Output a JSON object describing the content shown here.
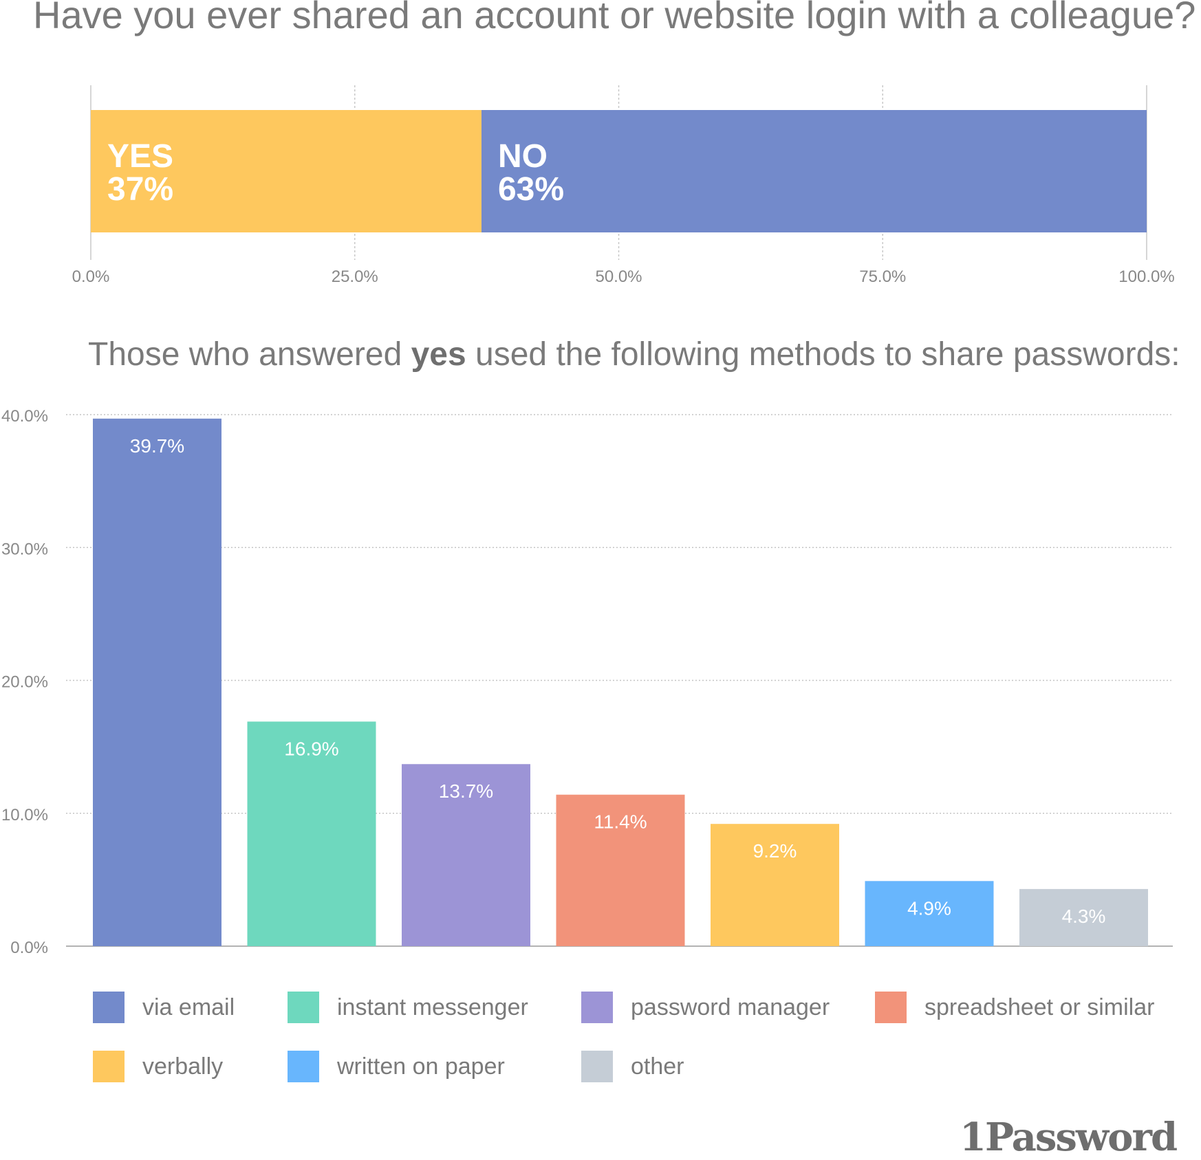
{
  "chart_data": [
    {
      "type": "bar",
      "orientation": "horizontal-stacked",
      "title": "Have you ever shared an account or website login with a colleague?",
      "segments": [
        {
          "name": "YES",
          "value": 37,
          "label": "37%",
          "color": "#FEC85E"
        },
        {
          "name": "NO",
          "value": 63,
          "label": "63%",
          "color": "#738ACB"
        }
      ],
      "xlim": [
        0,
        100
      ],
      "ticks": [
        "0.0%",
        "25.0%",
        "50.0%",
        "75.0%",
        "100.0%"
      ],
      "tick_values": [
        0,
        25,
        50,
        75,
        100
      ],
      "grid": true
    },
    {
      "type": "bar",
      "title_prefix": "Those who answered ",
      "title_bold": "yes",
      "title_suffix": " used the following methods to share passwords:",
      "categories": [
        "via email",
        "instant messenger",
        "password manager",
        "spreadsheet or similar",
        "verbally",
        "written on paper",
        "other"
      ],
      "values": [
        39.7,
        16.9,
        13.7,
        11.4,
        9.2,
        4.9,
        4.3
      ],
      "labels": [
        "39.7%",
        "16.9%",
        "13.7%",
        "11.4%",
        "9.2%",
        "4.9%",
        "4.3%"
      ],
      "colors": [
        "#738ACB",
        "#6ED8BE",
        "#9C94D6",
        "#F2937A",
        "#FEC85E",
        "#68B6FD",
        "#C5CDD6"
      ],
      "ylim": [
        0,
        40
      ],
      "yticks": [
        "0.0%",
        "10.0%",
        "20.0%",
        "30.0%",
        "40.0%"
      ],
      "ytick_values": [
        0,
        10,
        20,
        30,
        40
      ],
      "grid": true,
      "legend_placement": "bottom"
    }
  ],
  "logo": {
    "text": "1Password"
  }
}
